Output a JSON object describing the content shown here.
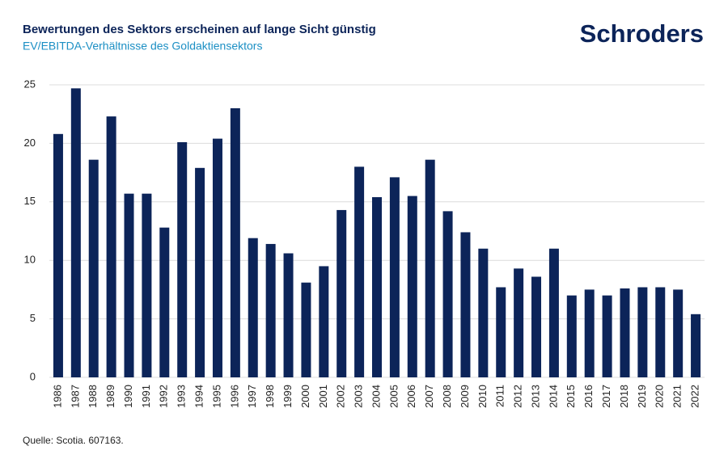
{
  "chart_data": {
    "type": "bar",
    "title": "Bewertungen des Sektors erscheinen auf lange Sicht günstig",
    "subtitle": "EV/EBITDA-Verhältnisse des Goldaktiensektors",
    "logo": "Schroders",
    "source": "Quelle: Scotia. 607163.",
    "categories": [
      "1986",
      "1987",
      "1988",
      "1989",
      "1990",
      "1991",
      "1992",
      "1993",
      "1994",
      "1995",
      "1996",
      "1997",
      "1998",
      "1999",
      "2000",
      "2001",
      "2002",
      "2003",
      "2004",
      "2005",
      "2006",
      "2007",
      "2008",
      "2009",
      "2010",
      "2011",
      "2012",
      "2013",
      "2014",
      "2015",
      "2016",
      "2017",
      "2018",
      "2019",
      "2020",
      "2021",
      "2022"
    ],
    "values": [
      20.8,
      24.7,
      18.6,
      22.3,
      15.7,
      15.7,
      12.8,
      20.1,
      17.9,
      20.4,
      23.0,
      11.9,
      11.4,
      10.6,
      8.1,
      9.5,
      14.3,
      18.0,
      15.4,
      17.1,
      15.5,
      18.6,
      14.2,
      12.4,
      11.0,
      7.7,
      9.3,
      8.6,
      11.0,
      7.0,
      7.5,
      7.0,
      7.6,
      7.7,
      7.7,
      7.5,
      5.4
    ],
    "color": "#0c2459",
    "ylim": [
      0,
      25
    ],
    "yticks": [
      0,
      5,
      10,
      15,
      20,
      25
    ],
    "grid": true
  }
}
